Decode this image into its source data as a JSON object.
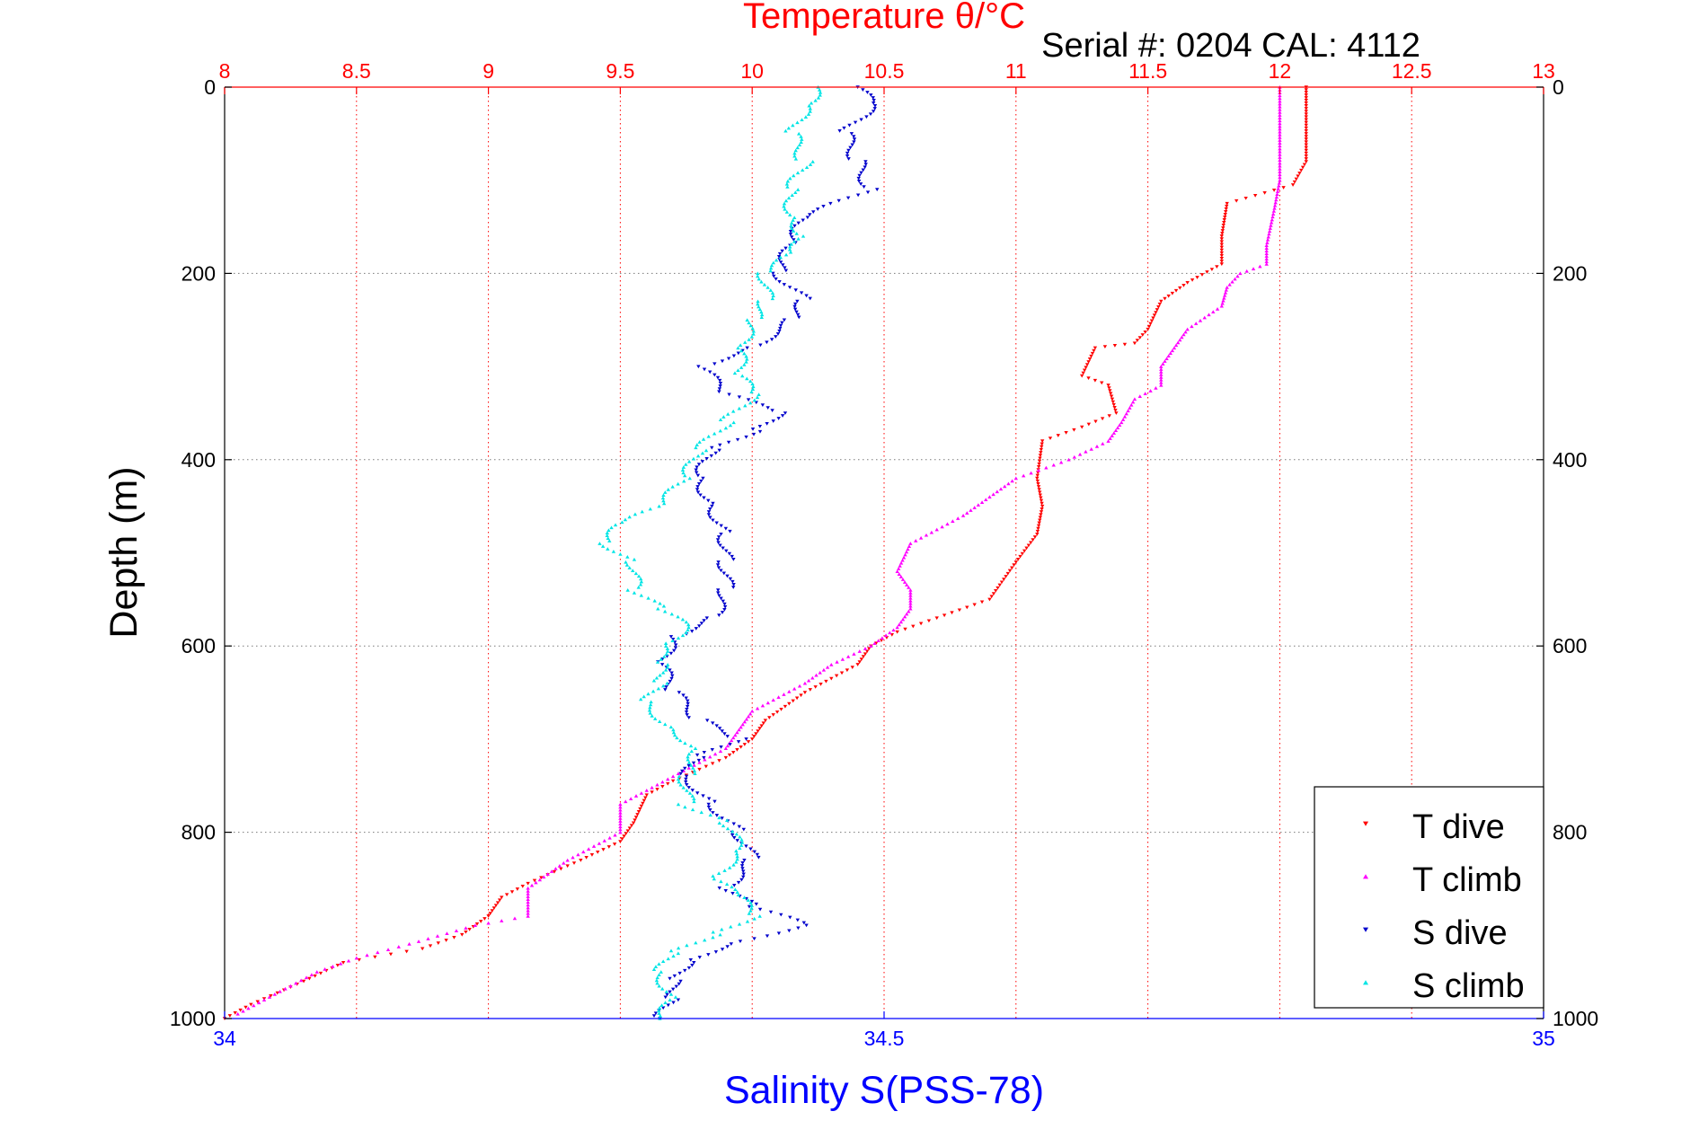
{
  "chart_data": {
    "type": "scatter",
    "title": "Temperature θ/°C",
    "subtitle": "Serial #: 0204  CAL: 4112",
    "xlabel_bottom": "Salinity S(PSS-78)",
    "ylabel": "Depth (m)",
    "temp_axis": {
      "range": [
        8,
        13
      ],
      "ticks": [
        "8",
        "8.5",
        "9",
        "9.5",
        "10",
        "10.5",
        "11",
        "11.5",
        "12",
        "12.5",
        "13"
      ]
    },
    "salinity_axis": {
      "range": [
        34,
        35
      ],
      "ticks": [
        "34",
        "34.5",
        "35"
      ]
    },
    "depth_axis": {
      "range": [
        0,
        1000
      ],
      "reversed": true,
      "ticks": [
        "0",
        "200",
        "400",
        "600",
        "800",
        "1000"
      ]
    },
    "grid": true,
    "legend": {
      "placement": "bottom-right",
      "entries": [
        "T dive",
        "T climb",
        "S dive",
        "S climb"
      ]
    },
    "colors": {
      "t_dive": "#ff0000",
      "t_climb": "#ff00ff",
      "s_dive": "#0000cc",
      "s_climb": "#00e5e5"
    },
    "series": [
      {
        "name": "T dive",
        "axis": "temperature",
        "marker": "down-triangle",
        "points": [
          [
            12.1,
            0
          ],
          [
            12.1,
            20
          ],
          [
            12.1,
            50
          ],
          [
            12.1,
            80
          ],
          [
            12.05,
            105
          ],
          [
            11.8,
            125
          ],
          [
            11.78,
            160
          ],
          [
            11.78,
            190
          ],
          [
            11.65,
            210
          ],
          [
            11.55,
            230
          ],
          [
            11.5,
            260
          ],
          [
            11.45,
            275
          ],
          [
            11.3,
            280
          ],
          [
            11.25,
            310
          ],
          [
            11.35,
            320
          ],
          [
            11.38,
            350
          ],
          [
            11.25,
            365
          ],
          [
            11.1,
            380
          ],
          [
            11.08,
            420
          ],
          [
            11.1,
            450
          ],
          [
            11.08,
            480
          ],
          [
            11.0,
            510
          ],
          [
            10.9,
            550
          ],
          [
            10.7,
            570
          ],
          [
            10.55,
            585
          ],
          [
            10.45,
            600
          ],
          [
            10.4,
            620
          ],
          [
            10.2,
            650
          ],
          [
            10.05,
            680
          ],
          [
            10.0,
            700
          ],
          [
            9.9,
            720
          ],
          [
            9.7,
            745
          ],
          [
            9.6,
            760
          ],
          [
            9.55,
            790
          ],
          [
            9.5,
            810
          ],
          [
            9.35,
            830
          ],
          [
            9.15,
            855
          ],
          [
            9.05,
            870
          ],
          [
            9.0,
            890
          ],
          [
            8.9,
            910
          ],
          [
            8.75,
            925
          ],
          [
            8.45,
            940
          ],
          [
            8.3,
            960
          ],
          [
            8.1,
            985
          ],
          [
            8.0,
            1000
          ]
        ]
      },
      {
        "name": "T climb",
        "axis": "temperature",
        "marker": "up-triangle",
        "points": [
          [
            12.0,
            0
          ],
          [
            12.0,
            30
          ],
          [
            12.0,
            60
          ],
          [
            12.0,
            100
          ],
          [
            11.98,
            130
          ],
          [
            11.95,
            170
          ],
          [
            11.95,
            190
          ],
          [
            11.85,
            200
          ],
          [
            11.8,
            215
          ],
          [
            11.78,
            235
          ],
          [
            11.65,
            260
          ],
          [
            11.6,
            280
          ],
          [
            11.55,
            300
          ],
          [
            11.55,
            320
          ],
          [
            11.45,
            335
          ],
          [
            11.4,
            360
          ],
          [
            11.35,
            380
          ],
          [
            11.2,
            400
          ],
          [
            11.0,
            420
          ],
          [
            10.9,
            440
          ],
          [
            10.8,
            460
          ],
          [
            10.6,
            490
          ],
          [
            10.55,
            520
          ],
          [
            10.6,
            540
          ],
          [
            10.6,
            560
          ],
          [
            10.55,
            580
          ],
          [
            10.45,
            600
          ],
          [
            10.3,
            620
          ],
          [
            10.2,
            640
          ],
          [
            10.0,
            670
          ],
          [
            9.95,
            690
          ],
          [
            9.9,
            710
          ],
          [
            9.7,
            740
          ],
          [
            9.5,
            770
          ],
          [
            9.5,
            800
          ],
          [
            9.3,
            830
          ],
          [
            9.15,
            860
          ],
          [
            9.15,
            890
          ],
          [
            8.95,
            900
          ],
          [
            8.7,
            920
          ],
          [
            8.5,
            935
          ],
          [
            8.35,
            950
          ],
          [
            8.25,
            965
          ],
          [
            8.15,
            980
          ],
          [
            8.05,
            995
          ]
        ]
      },
      {
        "name": "S dive",
        "axis": "salinity",
        "marker": "down-triangle",
        "points": [
          [
            34.48,
            0
          ],
          [
            34.49,
            20
          ],
          [
            34.47,
            50
          ],
          [
            34.48,
            80
          ],
          [
            34.49,
            110
          ],
          [
            34.44,
            140
          ],
          [
            34.43,
            170
          ],
          [
            34.42,
            200
          ],
          [
            34.44,
            230
          ],
          [
            34.43,
            250
          ],
          [
            34.4,
            280
          ],
          [
            34.36,
            300
          ],
          [
            34.38,
            330
          ],
          [
            34.42,
            350
          ],
          [
            34.4,
            370
          ],
          [
            34.37,
            390
          ],
          [
            34.36,
            420
          ],
          [
            34.37,
            450
          ],
          [
            34.38,
            480
          ],
          [
            34.38,
            510
          ],
          [
            34.38,
            540
          ],
          [
            34.37,
            570
          ],
          [
            34.34,
            590
          ],
          [
            34.33,
            620
          ],
          [
            34.34,
            650
          ],
          [
            34.36,
            680
          ],
          [
            34.39,
            700
          ],
          [
            34.36,
            720
          ],
          [
            34.35,
            740
          ],
          [
            34.37,
            770
          ],
          [
            34.39,
            800
          ],
          [
            34.4,
            830
          ],
          [
            34.38,
            860
          ],
          [
            34.4,
            880
          ],
          [
            34.44,
            900
          ],
          [
            34.38,
            920
          ],
          [
            34.35,
            940
          ],
          [
            34.34,
            960
          ],
          [
            34.34,
            980
          ],
          [
            34.33,
            1000
          ]
        ]
      },
      {
        "name": "S climb",
        "axis": "salinity",
        "marker": "up-triangle",
        "points": [
          [
            34.45,
            0
          ],
          [
            34.44,
            20
          ],
          [
            34.43,
            50
          ],
          [
            34.44,
            80
          ],
          [
            34.43,
            110
          ],
          [
            34.43,
            140
          ],
          [
            34.44,
            160
          ],
          [
            34.43,
            180
          ],
          [
            34.41,
            200
          ],
          [
            34.41,
            230
          ],
          [
            34.4,
            250
          ],
          [
            34.39,
            280
          ],
          [
            34.39,
            310
          ],
          [
            34.4,
            330
          ],
          [
            34.38,
            360
          ],
          [
            34.36,
            390
          ],
          [
            34.35,
            420
          ],
          [
            34.33,
            450
          ],
          [
            34.3,
            470
          ],
          [
            34.29,
            490
          ],
          [
            34.31,
            510
          ],
          [
            34.31,
            540
          ],
          [
            34.33,
            560
          ],
          [
            34.35,
            580
          ],
          [
            34.33,
            600
          ],
          [
            34.33,
            620
          ],
          [
            34.33,
            640
          ],
          [
            34.32,
            660
          ],
          [
            34.34,
            690
          ],
          [
            34.36,
            710
          ],
          [
            34.35,
            740
          ],
          [
            34.35,
            770
          ],
          [
            34.38,
            790
          ],
          [
            34.39,
            820
          ],
          [
            34.37,
            850
          ],
          [
            34.39,
            870
          ],
          [
            34.4,
            890
          ],
          [
            34.37,
            910
          ],
          [
            34.34,
            930
          ],
          [
            34.33,
            950
          ],
          [
            34.34,
            980
          ],
          [
            34.33,
            1000
          ]
        ]
      }
    ]
  }
}
